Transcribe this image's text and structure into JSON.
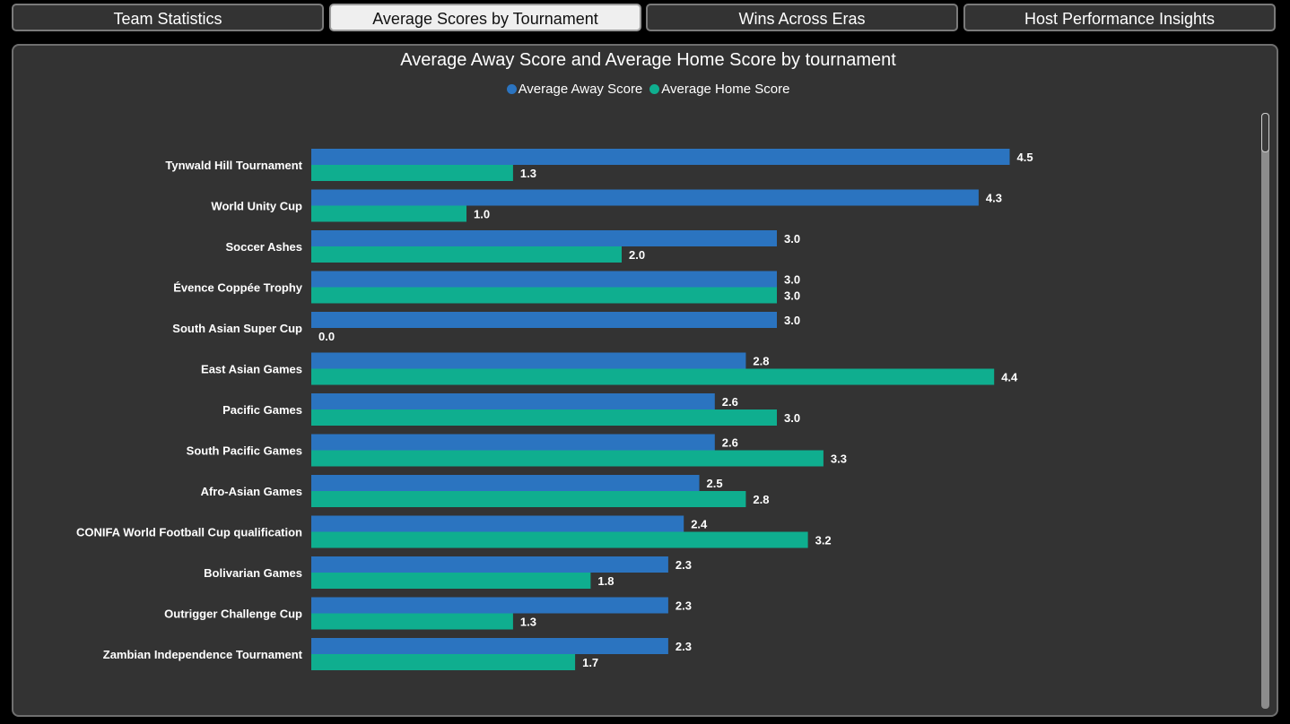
{
  "tabs": [
    {
      "label": "Team Statistics",
      "active": false
    },
    {
      "label": "Average Scores by Tournament",
      "active": true
    },
    {
      "label": "Wins Across Eras",
      "active": false
    },
    {
      "label": "Host Performance Insights",
      "active": false
    }
  ],
  "colors": {
    "away": "#2b74c0",
    "home": "#0fae8f"
  },
  "chart_data": {
    "type": "bar",
    "orientation": "horizontal",
    "title": "Average Away Score and Average Home Score by tournament",
    "legend_position": "top-center",
    "categories": [
      "Tynwald Hill Tournament",
      "World Unity Cup",
      "Soccer Ashes",
      "Évence Coppée Trophy",
      "South Asian Super Cup",
      "East Asian Games",
      "Pacific Games",
      "South Pacific Games",
      "Afro-Asian Games",
      "CONIFA World Football Cup qualification",
      "Bolivarian Games",
      "Outrigger Challenge Cup",
      "Zambian Independence Tournament"
    ],
    "series": [
      {
        "name": "Average Away Score",
        "values": [
          4.5,
          4.3,
          3.0,
          3.0,
          3.0,
          2.8,
          2.6,
          2.6,
          2.5,
          2.4,
          2.3,
          2.3,
          2.3
        ]
      },
      {
        "name": "Average Home Score",
        "values": [
          1.3,
          1.0,
          2.0,
          3.0,
          0.0,
          4.4,
          3.0,
          3.3,
          2.8,
          3.2,
          1.8,
          1.3,
          1.7
        ]
      }
    ],
    "grid": false
  }
}
